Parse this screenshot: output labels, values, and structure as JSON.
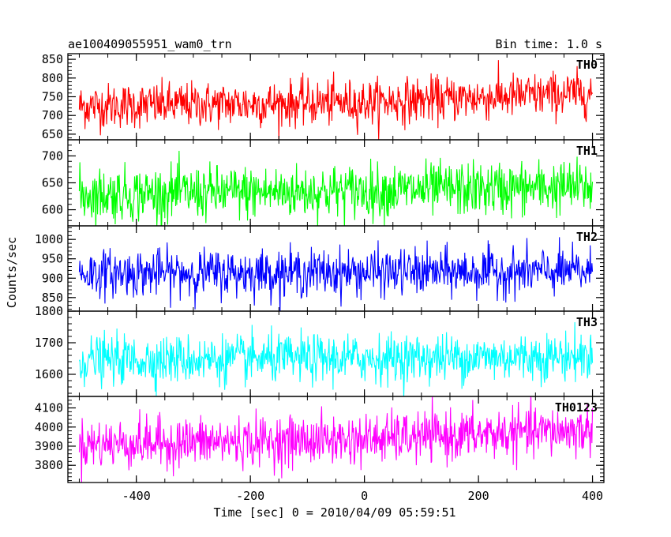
{
  "chart_data": {
    "type": "line",
    "title": "ae100409055951_wam0_trn",
    "subtitle": "Bin time: 1.0 s",
    "xlabel": "Time [sec] 0 = 2010/04/09 05:59:51",
    "ylabel": "Counts/sec",
    "xlim": [
      -520,
      420
    ],
    "x_ticks": [
      "-400",
      "-200",
      "0",
      "200",
      "400"
    ],
    "x_tick_values": [
      -400,
      -200,
      0,
      200,
      400
    ],
    "x_range": [
      -500,
      400
    ],
    "bin_time_s": 1.0,
    "grid": false,
    "panels": [
      {
        "name": "TH0",
        "color": "#ff0000",
        "ylim": [
          635,
          865
        ],
        "y_ticks": [
          "650",
          "700",
          "750",
          "800",
          "850"
        ],
        "y_tick_values": [
          650,
          700,
          750,
          800,
          850
        ],
        "trend": {
          "x": [
            -500,
            0,
            400
          ],
          "mean": [
            725,
            735,
            760
          ]
        },
        "noise_sd": 30
      },
      {
        "name": "TH1",
        "color": "#00ff00",
        "ylim": [
          570,
          730
        ],
        "y_ticks": [
          "600",
          "650",
          "700"
        ],
        "y_tick_values": [
          600,
          650,
          700
        ],
        "trend": {
          "x": [
            -500,
            0,
            400
          ],
          "mean": [
            628,
            635,
            642
          ]
        },
        "noise_sd": 25
      },
      {
        "name": "TH2",
        "color": "#0000ff",
        "ylim": [
          815,
          1035
        ],
        "y_ticks": [
          "850",
          "900",
          "950",
          "1000"
        ],
        "y_tick_values": [
          850,
          900,
          950,
          1000
        ],
        "trend": {
          "x": [
            -500,
            0,
            400
          ],
          "mean": [
            913,
            915,
            917
          ]
        },
        "noise_sd": 30
      },
      {
        "name": "TH3",
        "color": "#00ffff",
        "ylim": [
          1530,
          1800
        ],
        "y_ticks": [
          "1600",
          "1700",
          "1800"
        ],
        "y_tick_values": [
          1600,
          1700,
          1800
        ],
        "trend": {
          "x": [
            -500,
            0,
            400
          ],
          "mean": [
            1645,
            1650,
            1658
          ]
        },
        "noise_sd": 38
      },
      {
        "name": "TH0123",
        "color": "#ff00ff",
        "ylim": [
          3710,
          4160
        ],
        "y_ticks": [
          "3800",
          "3900",
          "4000",
          "4100"
        ],
        "y_tick_values": [
          3800,
          3900,
          4000,
          4100
        ],
        "trend": {
          "x": [
            -500,
            0,
            400
          ],
          "mean": [
            3910,
            3935,
            3985
          ]
        },
        "noise_sd": 65
      }
    ]
  }
}
